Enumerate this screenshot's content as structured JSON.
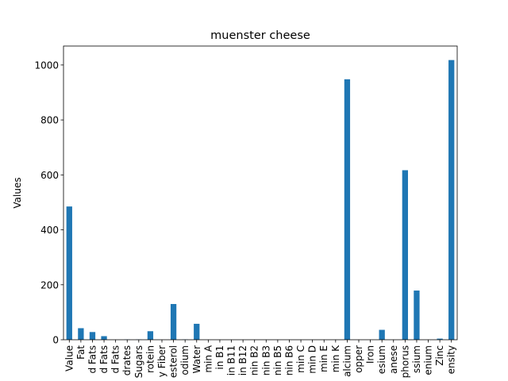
{
  "chart_data": {
    "type": "bar",
    "title": "muenster cheese",
    "xlabel": "",
    "ylabel": "Values",
    "ylim": [
      0,
      1069
    ],
    "yticks": [
      0,
      200,
      400,
      600,
      800,
      1000
    ],
    "grid": false,
    "legend": "none",
    "bar_color": "#1f77b4",
    "categories": [
      "Value",
      "Fat",
      "d Fats",
      "d Fats",
      "d Fats",
      "drates",
      "Sugars",
      "rotein",
      "y Fiber",
      "esterol",
      "odium",
      "Water",
      "min A",
      "in B1",
      "in B11",
      "in B12",
      "nin B2",
      "nin B3",
      "nin B5",
      "nin B6",
      "min C",
      "min D",
      "min E",
      "min K",
      "alcium",
      "opper",
      "Iron",
      "esium",
      "anese",
      "phorus",
      "ssium",
      "enium",
      "Zinc",
      "ensity"
    ],
    "values": [
      485,
      42,
      28,
      13,
      0,
      1,
      1,
      31,
      0,
      130,
      1,
      58,
      0,
      0,
      0,
      0,
      0,
      0,
      0,
      0,
      0,
      0,
      0,
      0,
      948,
      0,
      0,
      36,
      0,
      617,
      179,
      0,
      4,
      1018
    ]
  }
}
